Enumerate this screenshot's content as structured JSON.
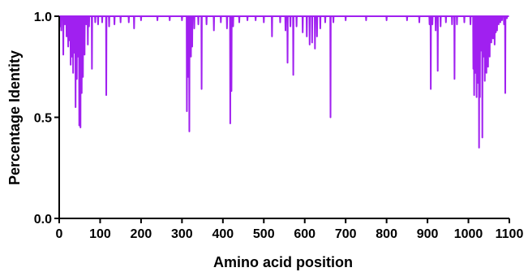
{
  "chart_data": {
    "type": "line",
    "xlabel": "Amino acid position",
    "ylabel": "Percentage Identity",
    "xlim": [
      0,
      1100
    ],
    "ylim": [
      0.0,
      1.0
    ],
    "x_ticks": [
      0,
      100,
      200,
      300,
      400,
      500,
      600,
      700,
      800,
      900,
      1000,
      1100
    ],
    "y_ticks": [
      0.0,
      0.5,
      1.0
    ],
    "y_tick_labels": [
      "0.0",
      "0.5",
      "1.0"
    ],
    "grid": false,
    "line_color": "#a020f0",
    "baseline": 1.0,
    "dips": [
      [
        2,
        0.95
      ],
      [
        5,
        0.93
      ],
      [
        10,
        0.81
      ],
      [
        14,
        0.96
      ],
      [
        18,
        0.9
      ],
      [
        22,
        0.85
      ],
      [
        26,
        0.88
      ],
      [
        28,
        0.76
      ],
      [
        31,
        0.8
      ],
      [
        34,
        0.72
      ],
      [
        37,
        0.82
      ],
      [
        40,
        0.55
      ],
      [
        43,
        0.69
      ],
      [
        46,
        0.8
      ],
      [
        49,
        0.46
      ],
      [
        52,
        0.45
      ],
      [
        55,
        0.62
      ],
      [
        58,
        0.7
      ],
      [
        62,
        0.81
      ],
      [
        66,
        0.96
      ],
      [
        70,
        0.86
      ],
      [
        73,
        0.95
      ],
      [
        80,
        0.74
      ],
      [
        88,
        0.97
      ],
      [
        95,
        0.96
      ],
      [
        105,
        0.97
      ],
      [
        115,
        0.61
      ],
      [
        122,
        0.95
      ],
      [
        135,
        0.96
      ],
      [
        150,
        0.97
      ],
      [
        170,
        0.97
      ],
      [
        183,
        0.94
      ],
      [
        200,
        0.98
      ],
      [
        240,
        0.98
      ],
      [
        270,
        0.98
      ],
      [
        300,
        0.98
      ],
      [
        312,
        0.53
      ],
      [
        315,
        0.7
      ],
      [
        318,
        0.43
      ],
      [
        322,
        0.8
      ],
      [
        325,
        0.85
      ],
      [
        330,
        0.94
      ],
      [
        340,
        0.96
      ],
      [
        348,
        0.64
      ],
      [
        360,
        0.96
      ],
      [
        378,
        0.93
      ],
      [
        395,
        0.97
      ],
      [
        410,
        0.94
      ],
      [
        418,
        0.47
      ],
      [
        421,
        0.63
      ],
      [
        425,
        0.95
      ],
      [
        440,
        0.97
      ],
      [
        460,
        0.98
      ],
      [
        480,
        0.98
      ],
      [
        500,
        0.97
      ],
      [
        520,
        0.9
      ],
      [
        540,
        0.97
      ],
      [
        553,
        0.93
      ],
      [
        558,
        0.77
      ],
      [
        565,
        0.95
      ],
      [
        572,
        0.71
      ],
      [
        580,
        0.95
      ],
      [
        595,
        0.92
      ],
      [
        605,
        0.9
      ],
      [
        612,
        0.86
      ],
      [
        618,
        0.87
      ],
      [
        625,
        0.84
      ],
      [
        630,
        0.9
      ],
      [
        638,
        0.94
      ],
      [
        650,
        0.97
      ],
      [
        663,
        0.5
      ],
      [
        670,
        0.97
      ],
      [
        700,
        0.98
      ],
      [
        750,
        0.98
      ],
      [
        800,
        0.98
      ],
      [
        850,
        0.98
      ],
      [
        880,
        0.97
      ],
      [
        905,
        0.96
      ],
      [
        908,
        0.64
      ],
      [
        912,
        0.96
      ],
      [
        920,
        0.93
      ],
      [
        925,
        0.73
      ],
      [
        932,
        0.95
      ],
      [
        945,
        0.97
      ],
      [
        960,
        0.96
      ],
      [
        966,
        0.69
      ],
      [
        972,
        0.96
      ],
      [
        990,
        0.97
      ],
      [
        1005,
        0.96
      ],
      [
        1012,
        0.74
      ],
      [
        1014,
        0.61
      ],
      [
        1017,
        0.72
      ],
      [
        1020,
        0.6
      ],
      [
        1023,
        0.67
      ],
      [
        1026,
        0.35
      ],
      [
        1028,
        0.6
      ],
      [
        1031,
        0.83
      ],
      [
        1034,
        0.4
      ],
      [
        1037,
        0.8
      ],
      [
        1040,
        0.68
      ],
      [
        1044,
        0.72
      ],
      [
        1048,
        0.75
      ],
      [
        1052,
        0.8
      ],
      [
        1056,
        0.87
      ],
      [
        1060,
        0.89
      ],
      [
        1064,
        0.86
      ],
      [
        1067,
        0.92
      ],
      [
        1070,
        0.93
      ],
      [
        1074,
        0.96
      ],
      [
        1078,
        0.97
      ],
      [
        1082,
        0.98
      ],
      [
        1087,
        0.96
      ],
      [
        1090,
        0.62
      ],
      [
        1094,
        0.99
      ]
    ]
  }
}
